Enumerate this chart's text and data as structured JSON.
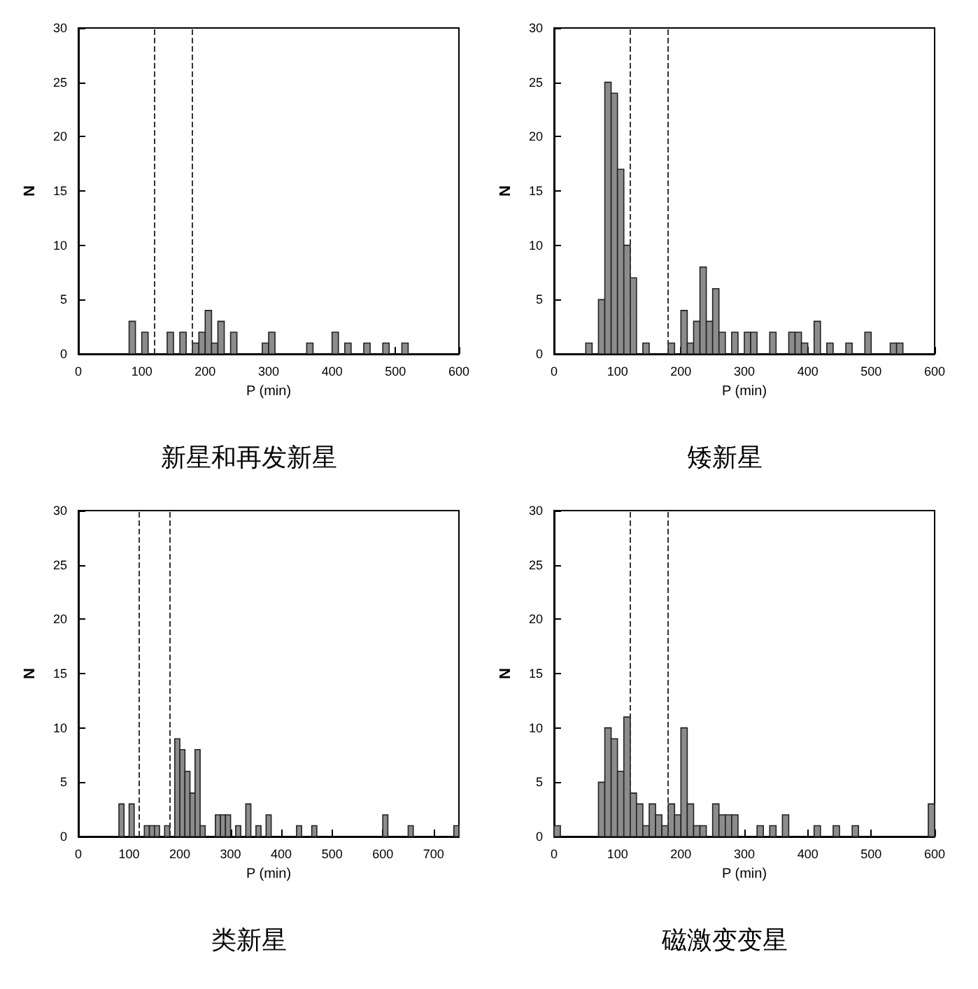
{
  "chart_data": [
    {
      "type": "histogram",
      "title": "新星和再发新星",
      "xlabel": "P (min)",
      "ylabel": "N",
      "color": "#8c8c8c",
      "bins": [
        0,
        10,
        20,
        30,
        40,
        50,
        60,
        70,
        80,
        90,
        100,
        110,
        120,
        130,
        140,
        150,
        160,
        170,
        180,
        190,
        200,
        210,
        220,
        230,
        240,
        250,
        260,
        270,
        280,
        290,
        300,
        310,
        320,
        330,
        340,
        350,
        360,
        370,
        380,
        390,
        400,
        410,
        420,
        430,
        440,
        450,
        460,
        470,
        480,
        490,
        500,
        510,
        520,
        530,
        540,
        550,
        560,
        570,
        580,
        590,
        600
      ],
      "values": [
        0,
        0,
        0,
        0,
        0,
        0,
        0,
        0,
        3,
        0,
        2,
        0,
        0,
        0,
        2,
        0,
        2,
        0,
        1,
        2,
        4,
        1,
        3,
        0,
        2,
        0,
        0,
        0,
        0,
        1,
        2,
        0,
        0,
        0,
        0,
        0,
        1,
        0,
        0,
        0,
        2,
        0,
        1,
        0,
        0,
        1,
        0,
        0,
        1,
        0,
        0,
        1,
        0,
        0,
        0,
        0,
        0,
        0,
        0,
        0
      ],
      "xlim": [
        0,
        600
      ],
      "xticks": [
        0,
        100,
        200,
        300,
        400,
        500,
        600
      ],
      "ylim": [
        0,
        30
      ],
      "yticks": [
        0,
        5,
        10,
        15,
        20,
        25,
        30
      ],
      "ref_lines": [
        {
          "axis": "x",
          "value": 120,
          "line_style": "dashed"
        },
        {
          "axis": "x",
          "value": 180,
          "line_style": "dashed"
        }
      ],
      "grid": false
    },
    {
      "type": "histogram",
      "title": "矮新星",
      "xlabel": "P (min)",
      "ylabel": "N",
      "color": "#8c8c8c",
      "bins": [
        0,
        10,
        20,
        30,
        40,
        50,
        60,
        70,
        80,
        90,
        100,
        110,
        120,
        130,
        140,
        150,
        160,
        170,
        180,
        190,
        200,
        210,
        220,
        230,
        240,
        250,
        260,
        270,
        280,
        290,
        300,
        310,
        320,
        330,
        340,
        350,
        360,
        370,
        380,
        390,
        400,
        410,
        420,
        430,
        440,
        450,
        460,
        470,
        480,
        490,
        500,
        510,
        520,
        530,
        540,
        550,
        560,
        570,
        580,
        590,
        600
      ],
      "values": [
        0,
        0,
        0,
        0,
        0,
        1,
        0,
        5,
        25,
        24,
        17,
        10,
        7,
        0,
        1,
        0,
        0,
        0,
        1,
        0,
        4,
        1,
        3,
        8,
        3,
        6,
        2,
        0,
        2,
        0,
        2,
        2,
        0,
        0,
        2,
        0,
        0,
        2,
        2,
        1,
        0,
        3,
        0,
        1,
        0,
        0,
        1,
        0,
        0,
        2,
        0,
        0,
        0,
        1,
        1,
        0,
        0,
        0,
        0,
        0
      ],
      "xlim": [
        0,
        600
      ],
      "xticks": [
        0,
        100,
        200,
        300,
        400,
        500,
        600
      ],
      "ylim": [
        0,
        30
      ],
      "yticks": [
        0,
        5,
        10,
        15,
        20,
        25,
        30
      ],
      "ref_lines": [
        {
          "axis": "x",
          "value": 120,
          "line_style": "dashed"
        },
        {
          "axis": "x",
          "value": 180,
          "line_style": "dashed"
        }
      ],
      "grid": false
    },
    {
      "type": "histogram",
      "title": "类新星",
      "xlabel": "P (min)",
      "ylabel": "N",
      "color": "#8c8c8c",
      "bins": [
        0,
        10,
        20,
        30,
        40,
        50,
        60,
        70,
        80,
        90,
        100,
        110,
        120,
        130,
        140,
        150,
        160,
        170,
        180,
        190,
        200,
        210,
        220,
        230,
        240,
        250,
        260,
        270,
        280,
        290,
        300,
        310,
        320,
        330,
        340,
        350,
        360,
        370,
        380,
        390,
        400,
        410,
        420,
        430,
        440,
        450,
        460,
        470,
        480,
        490,
        500,
        510,
        520,
        530,
        540,
        550,
        560,
        570,
        580,
        590,
        600,
        610,
        620,
        630,
        640,
        650,
        660,
        670,
        680,
        690,
        700,
        710,
        720,
        730,
        740,
        750
      ],
      "values": [
        0,
        0,
        0,
        0,
        0,
        0,
        0,
        0,
        3,
        0,
        3,
        0,
        0,
        1,
        1,
        1,
        0,
        1,
        0,
        9,
        8,
        6,
        4,
        8,
        1,
        0,
        0,
        2,
        2,
        2,
        0,
        1,
        0,
        3,
        0,
        1,
        0,
        2,
        0,
        0,
        0,
        0,
        0,
        1,
        0,
        0,
        1,
        0,
        0,
        0,
        0,
        0,
        0,
        0,
        0,
        0,
        0,
        0,
        0,
        0,
        2,
        0,
        0,
        0,
        0,
        1,
        0,
        0,
        0,
        0,
        0,
        0,
        0,
        0,
        1
      ],
      "xlim": [
        0,
        750
      ],
      "xticks": [
        0,
        100,
        200,
        300,
        400,
        500,
        600,
        700
      ],
      "ylim": [
        0,
        30
      ],
      "yticks": [
        0,
        5,
        10,
        15,
        20,
        25,
        30
      ],
      "ref_lines": [
        {
          "axis": "x",
          "value": 120,
          "line_style": "dashed"
        },
        {
          "axis": "x",
          "value": 180,
          "line_style": "dashed"
        }
      ],
      "grid": false
    },
    {
      "type": "histogram",
      "title": "磁激变变星",
      "xlabel": "P (min)",
      "ylabel": "N",
      "color": "#8c8c8c",
      "bins": [
        0,
        10,
        20,
        30,
        40,
        50,
        60,
        70,
        80,
        90,
        100,
        110,
        120,
        130,
        140,
        150,
        160,
        170,
        180,
        190,
        200,
        210,
        220,
        230,
        240,
        250,
        260,
        270,
        280,
        290,
        300,
        310,
        320,
        330,
        340,
        350,
        360,
        370,
        380,
        390,
        400,
        410,
        420,
        430,
        440,
        450,
        460,
        470,
        480,
        490,
        500,
        510,
        520,
        530,
        540,
        550,
        560,
        570,
        580,
        590,
        600
      ],
      "values": [
        1,
        0,
        0,
        0,
        0,
        0,
        0,
        5,
        10,
        9,
        6,
        11,
        4,
        3,
        1,
        3,
        2,
        1,
        3,
        2,
        10,
        3,
        1,
        1,
        0,
        3,
        2,
        2,
        2,
        0,
        0,
        0,
        1,
        0,
        1,
        0,
        2,
        0,
        0,
        0,
        0,
        1,
        0,
        0,
        1,
        0,
        0,
        1,
        0,
        0,
        0,
        0,
        0,
        0,
        0,
        0,
        0,
        0,
        0,
        3
      ],
      "xlim": [
        0,
        600
      ],
      "xticks": [
        0,
        100,
        200,
        300,
        400,
        500,
        600
      ],
      "ylim": [
        0,
        30
      ],
      "yticks": [
        0,
        5,
        10,
        15,
        20,
        25,
        30
      ],
      "ref_lines": [
        {
          "axis": "x",
          "value": 120,
          "line_style": "dashed"
        },
        {
          "axis": "x",
          "value": 180,
          "line_style": "dashed"
        }
      ],
      "grid": false
    }
  ]
}
